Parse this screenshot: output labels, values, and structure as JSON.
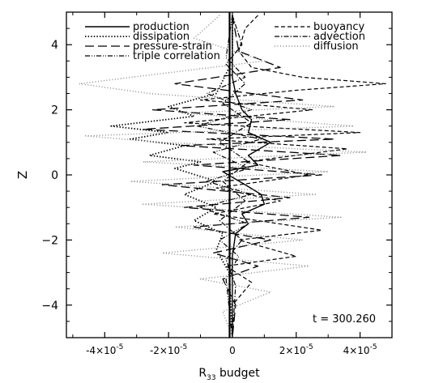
{
  "chart_data": {
    "type": "line",
    "xlabel_main": "R",
    "xlabel_sub": "33",
    "xlabel_rest": " budget",
    "ylabel": "Z",
    "annotation": "t = 300.260",
    "xlim": [
      -5.2e-05,
      5e-05
    ],
    "ylim": [
      -5,
      5
    ],
    "x_ticks": [
      {
        "value": -4e-05,
        "mant": "-4×10",
        "exp": "-5"
      },
      {
        "value": -2e-05,
        "mant": "-2×10",
        "exp": "-5"
      },
      {
        "value": 0,
        "mant": "0",
        "exp": ""
      },
      {
        "value": 2e-05,
        "mant": "2×10",
        "exp": "-5"
      },
      {
        "value": 4e-05,
        "mant": "4×10",
        "exp": "-5"
      }
    ],
    "y_ticks": [
      {
        "value": -4,
        "label": "−4"
      },
      {
        "value": -2,
        "label": "−2"
      },
      {
        "value": 0,
        "label": "0"
      },
      {
        "value": 2,
        "label": "2"
      },
      {
        "value": 4,
        "label": "4"
      }
    ],
    "legend_position": "top",
    "series": [
      {
        "name": "production",
        "style": "solid",
        "points": [
          [
            0.0,
            4.9
          ],
          [
            0.0,
            3.0
          ],
          [
            1e-06,
            2.5
          ],
          [
            3e-06,
            2.0
          ],
          [
            6e-06,
            1.7
          ],
          [
            5e-06,
            1.3
          ],
          [
            1.2e-05,
            1.0
          ],
          [
            5e-06,
            0.6
          ],
          [
            8e-06,
            0.3
          ],
          [
            -3e-06,
            0.1
          ],
          [
            4e-06,
            -0.3
          ],
          [
            9e-06,
            -0.6
          ],
          [
            1e-05,
            -0.9
          ],
          [
            3e-06,
            -1.2
          ],
          [
            5e-06,
            -1.5
          ],
          [
            1e-06,
            -1.8
          ],
          [
            0.0,
            -2.5
          ],
          [
            0.0,
            -5.0
          ]
        ]
      },
      {
        "name": "dissipation",
        "style": "dotted",
        "points": [
          [
            0.0,
            4.9
          ],
          [
            0.0,
            3.5
          ],
          [
            -5e-06,
            2.5
          ],
          [
            -2e-05,
            2.1
          ],
          [
            -1.2e-05,
            1.8
          ],
          [
            -3.8e-05,
            1.5
          ],
          [
            -2e-05,
            1.3
          ],
          [
            -3.2e-05,
            1.1
          ],
          [
            -1.5e-05,
            0.9
          ],
          [
            -2.6e-05,
            0.6
          ],
          [
            -1e-05,
            0.4
          ],
          [
            -1.8e-05,
            0.2
          ],
          [
            -5e-06,
            -0.2
          ],
          [
            -1.5e-05,
            -0.6
          ],
          [
            -5e-06,
            -1.0
          ],
          [
            -1.2e-05,
            -1.4
          ],
          [
            -3e-06,
            -1.8
          ],
          [
            -5e-06,
            -2.3
          ],
          [
            -1e-06,
            -3.0
          ],
          [
            0.0,
            -5.0
          ]
        ]
      },
      {
        "name": "pressure-strain",
        "style": "longdash",
        "points": [
          [
            0.0,
            4.9
          ],
          [
            2e-06,
            3.8
          ],
          [
            1.5e-05,
            3.3
          ],
          [
            -1.8e-05,
            2.8
          ],
          [
            2.2e-05,
            2.3
          ],
          [
            -2.5e-05,
            2.0
          ],
          [
            1.8e-05,
            1.7
          ],
          [
            -2.8e-05,
            1.4
          ],
          [
            3.2e-05,
            1.1
          ],
          [
            -1.6e-05,
            0.9
          ],
          [
            3.4e-05,
            0.6
          ],
          [
            -1.2e-05,
            0.3
          ],
          [
            2.8e-05,
            0.0
          ],
          [
            -2.2e-05,
            -0.3
          ],
          [
            1.8e-05,
            -0.7
          ],
          [
            -1.5e-05,
            -1.0
          ],
          [
            2.4e-05,
            -1.3
          ],
          [
            -1.2e-05,
            -1.6
          ],
          [
            1.2e-05,
            -2.0
          ],
          [
            -6e-06,
            -2.4
          ],
          [
            8e-06,
            -2.8
          ],
          [
            -3e-06,
            -3.2
          ],
          [
            1e-06,
            -4.0
          ],
          [
            0.0,
            -5.0
          ]
        ]
      },
      {
        "name": "triple correlation",
        "style": "dashdotdot",
        "points": [
          [
            0.0,
            4.9
          ],
          [
            -2e-06,
            3.6
          ],
          [
            4e-06,
            3.0
          ],
          [
            -8e-06,
            2.5
          ],
          [
            6e-06,
            2.0
          ],
          [
            -1.1e-05,
            1.5
          ],
          [
            9e-06,
            1.1
          ],
          [
            -6e-06,
            0.7
          ],
          [
            5e-06,
            0.2
          ],
          [
            -8e-06,
            -0.2
          ],
          [
            6e-06,
            -0.6
          ],
          [
            -1e-05,
            -1.0
          ],
          [
            5e-06,
            -1.5
          ],
          [
            -4e-06,
            -2.0
          ],
          [
            2e-06,
            -2.5
          ],
          [
            -2e-06,
            -3.2
          ],
          [
            0.0,
            -5.0
          ]
        ]
      },
      {
        "name": "buoyancy",
        "style": "dashed",
        "points": [
          [
            8e-06,
            4.9
          ],
          [
            4e-06,
            4.5
          ],
          [
            2e-06,
            3.8
          ],
          [
            6e-06,
            3.3
          ],
          [
            2.2e-05,
            3.0
          ],
          [
            4.8e-05,
            2.8
          ],
          [
            2e-05,
            2.6
          ],
          [
            -1e-05,
            2.3
          ],
          [
            2.5e-05,
            2.0
          ],
          [
            -1.5e-05,
            1.6
          ],
          [
            4e-05,
            1.3
          ],
          [
            -8e-06,
            1.1
          ],
          [
            3.6e-05,
            0.8
          ],
          [
            4e-06,
            0.4
          ],
          [
            2.4e-05,
            0.0
          ],
          [
            -5e-06,
            -0.4
          ],
          [
            1.5e-05,
            -0.8
          ],
          [
            -6e-06,
            -1.2
          ],
          [
            2.8e-05,
            -1.7
          ],
          [
            2e-06,
            -2.0
          ],
          [
            2e-05,
            -2.5
          ],
          [
            -2e-06,
            -2.8
          ],
          [
            6e-06,
            -3.3
          ],
          [
            0.0,
            -4.0
          ],
          [
            0.0,
            -5.0
          ]
        ]
      },
      {
        "name": "advection",
        "style": "dashdot",
        "points": [
          [
            0.0,
            4.9
          ],
          [
            3e-06,
            4.0
          ],
          [
            -2e-06,
            3.4
          ],
          [
            4e-06,
            2.8
          ],
          [
            -3e-06,
            2.2
          ],
          [
            6e-06,
            1.6
          ],
          [
            -4e-06,
            1.0
          ],
          [
            5e-06,
            0.4
          ],
          [
            -3e-06,
            -0.2
          ],
          [
            4e-06,
            -0.8
          ],
          [
            -4e-06,
            -1.4
          ],
          [
            3e-06,
            -2.0
          ],
          [
            -2e-06,
            -2.6
          ],
          [
            1e-06,
            -3.4
          ],
          [
            0.0,
            -5.0
          ]
        ]
      },
      {
        "name": "diffusion",
        "style": "sparse-dotted",
        "points": [
          [
            -4e-06,
            4.9
          ],
          [
            -1.2e-05,
            4.2
          ],
          [
            1e-05,
            3.5
          ],
          [
            -4.8e-05,
            2.8
          ],
          [
            -2.6e-05,
            2.5
          ],
          [
            3.2e-05,
            2.1
          ],
          [
            -1.6e-05,
            1.9
          ],
          [
            3.8e-05,
            1.5
          ],
          [
            -4.6e-05,
            1.2
          ],
          [
            -2.2e-05,
            1.0
          ],
          [
            4.2e-05,
            0.7
          ],
          [
            -2.8e-05,
            0.4
          ],
          [
            3e-05,
            0.1
          ],
          [
            -3.2e-05,
            -0.2
          ],
          [
            2.6e-05,
            -0.6
          ],
          [
            -2.8e-05,
            -0.9
          ],
          [
            3.4e-05,
            -1.3
          ],
          [
            -1.8e-05,
            -1.6
          ],
          [
            2.2e-05,
            -2.0
          ],
          [
            -2.2e-05,
            -2.4
          ],
          [
            2.4e-05,
            -2.8
          ],
          [
            -1e-05,
            -3.2
          ],
          [
            1.2e-05,
            -3.6
          ],
          [
            -3e-06,
            -4.2
          ],
          [
            0.0,
            -5.0
          ]
        ]
      }
    ]
  }
}
